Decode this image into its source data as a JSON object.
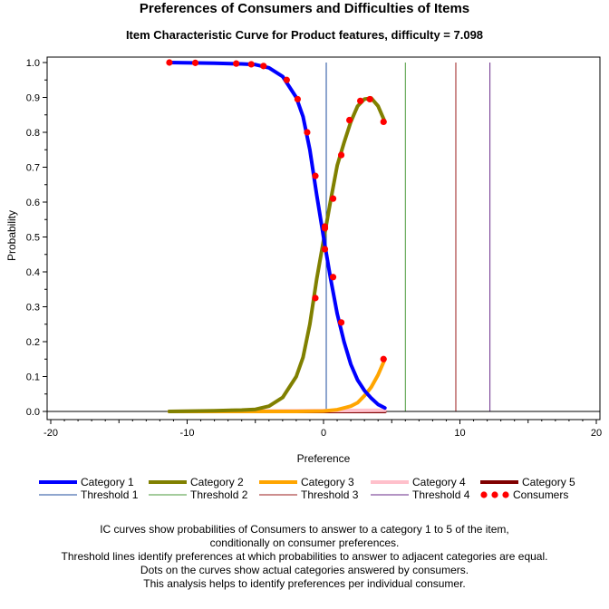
{
  "chart_data": {
    "type": "line",
    "title": "Preferences of Consumers and Difficulties of Items",
    "subtitle": "Item Characteristic Curve for Product features, difficulty = 7.098",
    "xlabel": "Preference",
    "ylabel": "Probability",
    "xlim": [
      -20,
      20
    ],
    "ylim": [
      0,
      1
    ],
    "x_ticks": [
      "-20",
      "-10",
      "0",
      "10",
      "20"
    ],
    "y_ticks": [
      "0.0",
      "0.1",
      "0.2",
      "0.3",
      "0.4",
      "0.5",
      "0.6",
      "0.7",
      "0.8",
      "0.9",
      "1.0"
    ],
    "thresholds": [
      {
        "name": "Threshold 1",
        "x": 0.2,
        "color": "#1f4e9e"
      },
      {
        "name": "Threshold 2",
        "x": 6.0,
        "color": "#4a9a3a"
      },
      {
        "name": "Threshold 3",
        "x": 9.7,
        "color": "#9b1c1c"
      },
      {
        "name": "Threshold 4",
        "x": 12.2,
        "color": "#6a2a8a"
      }
    ],
    "series": [
      {
        "name": "Category 1",
        "color": "#0000ff",
        "x": [
          -11.3,
          -8,
          -6,
          -5,
          -4,
          -3,
          -2,
          -1.5,
          -1,
          -0.5,
          0,
          0.5,
          1,
          1.5,
          2,
          2.5,
          3,
          3.5,
          4,
          4.5
        ],
        "y": [
          1.0,
          0.998,
          0.996,
          0.994,
          0.985,
          0.96,
          0.9,
          0.845,
          0.75,
          0.62,
          0.5,
          0.385,
          0.28,
          0.2,
          0.135,
          0.09,
          0.06,
          0.038,
          0.02,
          0.01
        ]
      },
      {
        "name": "Category 2",
        "color": "#808000",
        "x": [
          -11.3,
          -8,
          -6,
          -5,
          -4,
          -3,
          -2,
          -1.5,
          -1,
          -0.5,
          0,
          0.5,
          1,
          1.5,
          2,
          2.5,
          3,
          3.5,
          4,
          4.5
        ],
        "y": [
          0.0,
          0.002,
          0.004,
          0.006,
          0.015,
          0.04,
          0.1,
          0.155,
          0.25,
          0.38,
          0.49,
          0.6,
          0.705,
          0.77,
          0.83,
          0.875,
          0.895,
          0.898,
          0.875,
          0.83
        ]
      },
      {
        "name": "Category 3",
        "color": "#ffa500",
        "x": [
          -11.3,
          -4,
          -2,
          0,
          1,
          2,
          2.5,
          3,
          3.5,
          4,
          4.5
        ],
        "y": [
          0.0,
          0.0,
          0.0,
          0.001,
          0.005,
          0.015,
          0.025,
          0.045,
          0.07,
          0.105,
          0.15
        ]
      },
      {
        "name": "Category 4",
        "color": "#ffc0cb",
        "x": [
          -11.3,
          4.5
        ],
        "y": [
          0.0,
          0.003
        ]
      },
      {
        "name": "Category 5",
        "color": "#800000",
        "x": [
          -11.3,
          4.5
        ],
        "y": [
          0.0,
          0.0
        ]
      }
    ],
    "consumers": {
      "name": "Consumers",
      "color": "#ff0000",
      "x": [
        -11.3,
        -9.4,
        -6.4,
        -5.3,
        -4.4,
        -2.7,
        -1.9,
        -1.2,
        -0.6,
        0.1,
        0.7,
        1.3,
        1.9,
        2.7,
        3.4,
        4.4,
        -0.6,
        0.1,
        0.7,
        1.3,
        0.1,
        4.4
      ],
      "y": [
        1.0,
        0.999,
        0.997,
        0.995,
        0.99,
        0.95,
        0.895,
        0.8,
        0.675,
        0.53,
        0.385,
        0.255,
        0.835,
        0.89,
        0.895,
        0.83,
        0.325,
        0.465,
        0.61,
        0.735,
        0.525,
        0.15
      ]
    },
    "legend_placement": "bottom",
    "legend": [
      "Category 1",
      "Category 2",
      "Category 3",
      "Category 4",
      "Category 5",
      "Threshold 1",
      "Threshold 2",
      "Threshold 3",
      "Threshold 4",
      "Consumers"
    ]
  },
  "notes": [
    "IC curves show probabilities of Consumers to answer to a category 1 to 5 of the item,",
    "conditionally on consumer preferences.",
    "Threshold lines identify preferences at which probabilities to answer to adjacent categories are equal.",
    "Dots on the curves show actual categories answered by consumers.",
    "This analysis helps to identify preferences per individual consumer."
  ]
}
